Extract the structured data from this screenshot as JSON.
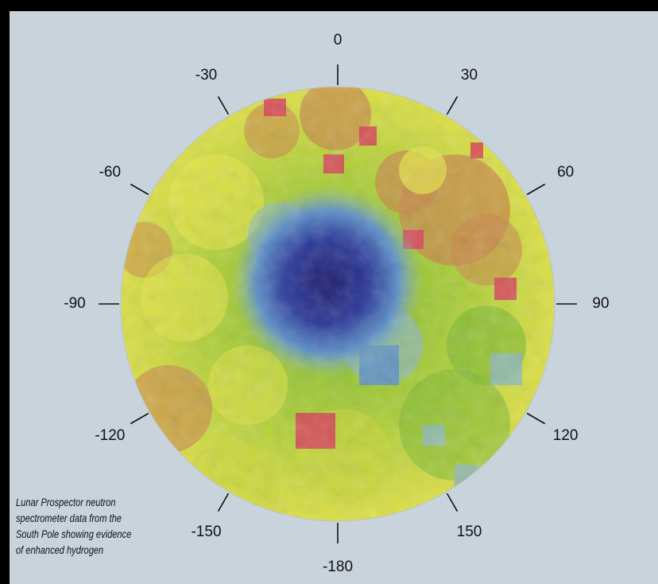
{
  "figure": {
    "projection": "polar (South Pole)",
    "longitude_labels": [
      {
        "deg": 0,
        "text": "0"
      },
      {
        "deg": 30,
        "text": "30"
      },
      {
        "deg": 60,
        "text": "60"
      },
      {
        "deg": 90,
        "text": "90"
      },
      {
        "deg": 120,
        "text": "120"
      },
      {
        "deg": 150,
        "text": "150"
      },
      {
        "deg": 180,
        "text": "-180"
      },
      {
        "deg": -150,
        "text": "-150"
      },
      {
        "deg": -120,
        "text": "-120"
      },
      {
        "deg": -90,
        "text": "-90"
      },
      {
        "deg": -60,
        "text": "-60"
      },
      {
        "deg": -30,
        "text": "-30"
      }
    ],
    "caption_lines": [
      "Lunar Prospector neutron",
      "spectrometer data from the",
      "South Pole showing evidence",
      "of enhanced hydrogen"
    ],
    "colors": {
      "background": "#c9d3dc",
      "frame": "#000000",
      "high_hydrogen": "#1c1a6e",
      "mid_blue": "#5b8fc8",
      "teal": "#8fb8b8",
      "green": "#7bb833",
      "yellow_green": "#c8d63a",
      "yellow": "#e6e44a",
      "orange": "#c8884a",
      "red": "#d8405a"
    }
  }
}
